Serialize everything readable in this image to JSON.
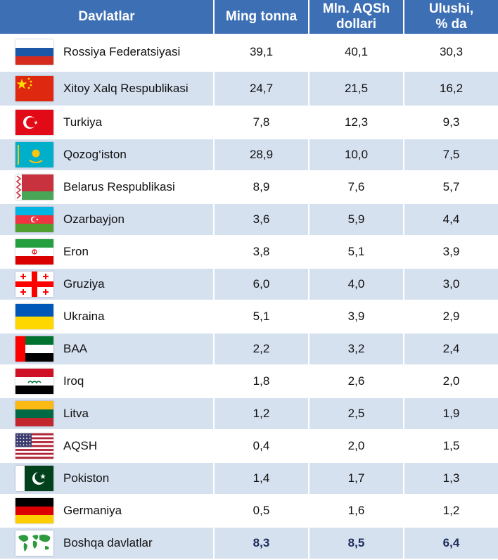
{
  "headers": {
    "country": "Davlatlar",
    "tons": "Ming tonna",
    "usd": "Mln. AQSh dollari",
    "share": "Ulushi, % da"
  },
  "rows": [
    {
      "name": "Rossiya Federatsiyasi",
      "flag": "russia-flag",
      "tons": "39,1",
      "usd": "40,1",
      "share": "30,3"
    },
    {
      "name": "Xitoy Xalq Respublikasi",
      "flag": "china-flag",
      "tons": "24,7",
      "usd": "21,5",
      "share": "16,2"
    },
    {
      "name": "Turkiya",
      "flag": "turkey-flag",
      "tons": "7,8",
      "usd": "12,3",
      "share": "9,3"
    },
    {
      "name": "Qozog‘iston",
      "flag": "kazakhstan-flag",
      "tons": "28,9",
      "usd": "10,0",
      "share": "7,5"
    },
    {
      "name": "Belarus Respublikasi",
      "flag": "belarus-flag",
      "tons": "8,9",
      "usd": "7,6",
      "share": "5,7"
    },
    {
      "name": "Ozarbayjon",
      "flag": "azerbaijan-flag",
      "tons": "3,6",
      "usd": "5,9",
      "share": "4,4"
    },
    {
      "name": "Eron",
      "flag": "iran-flag",
      "tons": "3,8",
      "usd": "5,1",
      "share": "3,9"
    },
    {
      "name": "Gruziya",
      "flag": "georgia-flag",
      "tons": "6,0",
      "usd": "4,0",
      "share": "3,0"
    },
    {
      "name": "Ukraina",
      "flag": "ukraine-flag",
      "tons": "5,1",
      "usd": "3,9",
      "share": "2,9"
    },
    {
      "name": "BAA",
      "flag": "uae-flag",
      "tons": "2,2",
      "usd": "3,2",
      "share": "2,4"
    },
    {
      "name": "Iroq",
      "flag": "iraq-flag",
      "tons": "1,8",
      "usd": "2,6",
      "share": "2,0"
    },
    {
      "name": "Litva",
      "flag": "lithuania-flag",
      "tons": "1,2",
      "usd": "2,5",
      "share": "1,9"
    },
    {
      "name": "AQSH",
      "flag": "usa-flag",
      "tons": "0,4",
      "usd": "2,0",
      "share": "1,5"
    },
    {
      "name": "Pokiston",
      "flag": "pakistan-flag",
      "tons": "1,4",
      "usd": "1,7",
      "share": "1,3"
    },
    {
      "name": "Germaniya",
      "flag": "germany-flag",
      "tons": "0,5",
      "usd": "1,6",
      "share": "1,2"
    },
    {
      "name": "Boshqa davlatlar",
      "flag": "world-map-icon",
      "tons": "8,3",
      "usd": "8,5",
      "share": "6,4"
    }
  ],
  "colors": {
    "header": "#3d6fb5",
    "stripe": "#d6e1f0",
    "total_text": "#1c2a5a"
  }
}
